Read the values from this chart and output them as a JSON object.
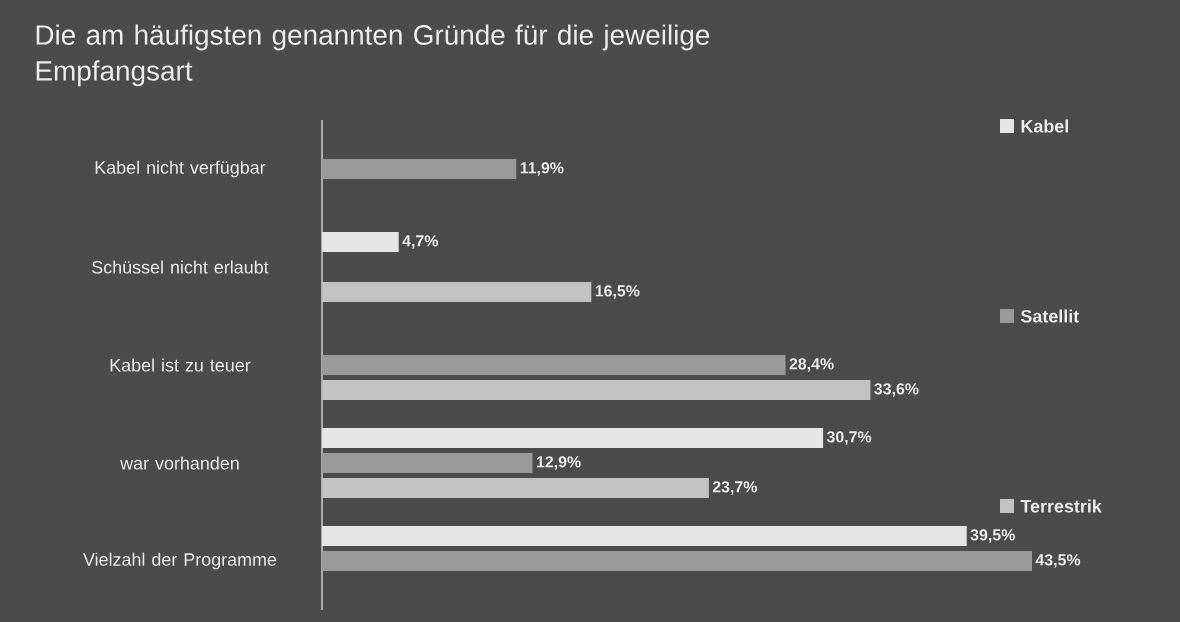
{
  "chart_data": {
    "type": "bar",
    "orientation": "horizontal",
    "title": "Die am häufigsten genannten Gründe für die jeweilige Empfangsart",
    "categories": [
      "Kabel nicht verfügbar",
      "Schüssel nicht erlaubt",
      "Kabel ist zu teuer",
      "war vorhanden",
      "Vielzahl der Programme"
    ],
    "series": [
      {
        "name": "Kabel",
        "color": "#e6e6e6",
        "values": [
          null,
          4.7,
          null,
          30.7,
          39.5
        ],
        "value_labels": [
          null,
          "4,7%",
          null,
          "30,7%",
          "39,5%"
        ]
      },
      {
        "name": "Satellit",
        "color": "#9a9a9a",
        "values": [
          11.9,
          null,
          28.4,
          12.9,
          43.5
        ],
        "value_labels": [
          "11,9%",
          null,
          "28,4%",
          "12,9%",
          "43,5%"
        ]
      },
      {
        "name": "Terrestrik",
        "color": "#c2c2c2",
        "values": [
          null,
          16.5,
          33.6,
          23.7,
          null
        ],
        "value_labels": [
          null,
          "16,5%",
          "33,6%",
          "23,7%",
          null
        ]
      }
    ],
    "xlim": [
      0,
      43.5
    ],
    "legend": "right"
  }
}
